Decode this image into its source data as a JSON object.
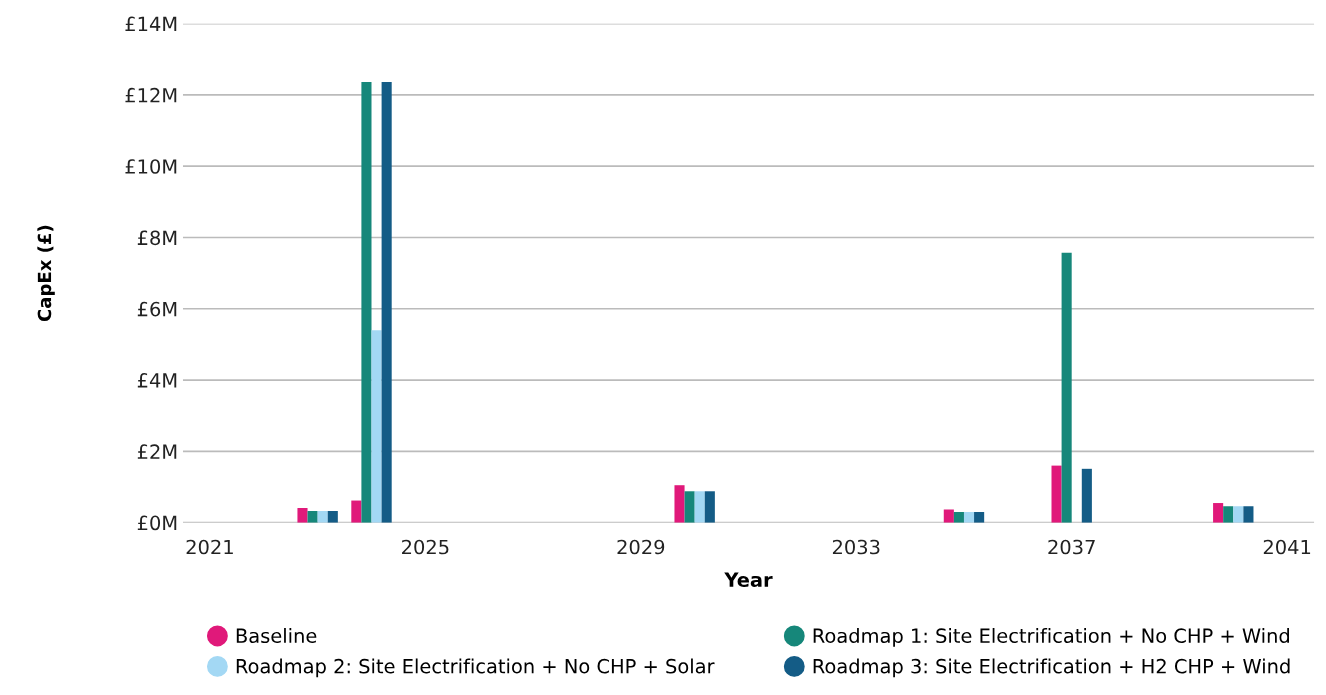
{
  "chart_data": {
    "type": "bar",
    "xlabel": "Year",
    "ylabel": "CapEx (£)",
    "x": [
      2023,
      2024,
      2030,
      2035,
      2037,
      2040
    ],
    "series": [
      {
        "name": "Baseline",
        "color": "#e0197a",
        "values": [
          0.41,
          0.62,
          1.05,
          0.37,
          1.6,
          0.55
        ]
      },
      {
        "name": "Roadmap 1: Site Electrification + No CHP + Wind",
        "color": "#16877a",
        "values": [
          0.33,
          12.36,
          0.88,
          0.3,
          7.57,
          0.46
        ]
      },
      {
        "name": "Roadmap 2: Site Electrification + No CHP + Solar",
        "color": "#a3d8f4",
        "values": [
          0.33,
          5.4,
          0.88,
          0.3,
          0,
          0.46
        ]
      },
      {
        "name": "Roadmap 3: Site Electrification + H2 CHP + Wind",
        "color": "#145c86",
        "values": [
          0.33,
          12.36,
          0.88,
          0.3,
          1.51,
          0.46
        ]
      }
    ],
    "xlim": [
      2020.5,
      2041.5
    ],
    "xticks": [
      2021,
      2025,
      2029,
      2033,
      2037,
      2041
    ],
    "ylim": [
      0,
      14
    ],
    "yticks": [
      {
        "value": 0,
        "label": "£0M"
      },
      {
        "value": 2,
        "label": "£2M"
      },
      {
        "value": 4,
        "label": "£4M"
      },
      {
        "value": 6,
        "label": "£6M"
      },
      {
        "value": 8,
        "label": "£8M"
      },
      {
        "value": 10,
        "label": "£10M"
      },
      {
        "value": 12,
        "label": "£12M"
      },
      {
        "value": 14,
        "label": "£14M"
      }
    ],
    "grid": "y",
    "legend": "bottom",
    "marker": "circle"
  }
}
